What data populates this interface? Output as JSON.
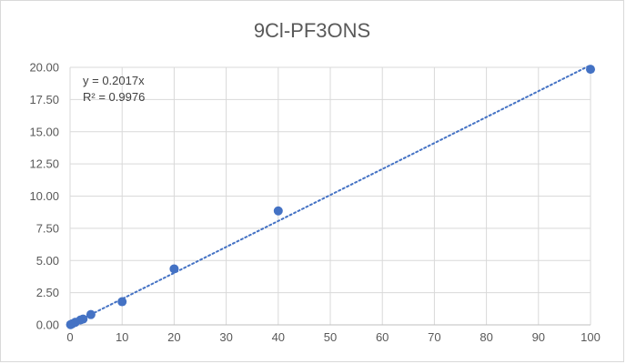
{
  "chart_data": {
    "type": "scatter",
    "title": "9Cl-PF3ONS",
    "xlabel": "",
    "ylabel": "",
    "xlim": [
      0,
      100
    ],
    "ylim": [
      0,
      20
    ],
    "x_ticks": [
      "0",
      "10",
      "20",
      "30",
      "40",
      "50",
      "60",
      "70",
      "80",
      "90",
      "100"
    ],
    "y_ticks": [
      "0.00",
      "2.50",
      "5.00",
      "7.50",
      "10.00",
      "12.50",
      "15.00",
      "17.50",
      "20.00"
    ],
    "grid": true,
    "legend": "none",
    "series": [
      {
        "points": [
          {
            "x": 0.1,
            "y": 0.02
          },
          {
            "x": 0.4,
            "y": 0.08
          },
          {
            "x": 1,
            "y": 0.2
          },
          {
            "x": 2,
            "y": 0.38
          },
          {
            "x": 2.5,
            "y": 0.45
          },
          {
            "x": 4,
            "y": 0.8
          },
          {
            "x": 10,
            "y": 1.8
          },
          {
            "x": 20,
            "y": 4.35
          },
          {
            "x": 40,
            "y": 8.85
          },
          {
            "x": 100,
            "y": 19.85
          }
        ],
        "color": "#4472c4"
      }
    ],
    "trendline": {
      "kind": "linear",
      "slope": 0.2017,
      "intercept": 0,
      "color": "#4472c4",
      "equation": "y = 0.2017x",
      "r_squared": "R² = 0.9976"
    }
  }
}
